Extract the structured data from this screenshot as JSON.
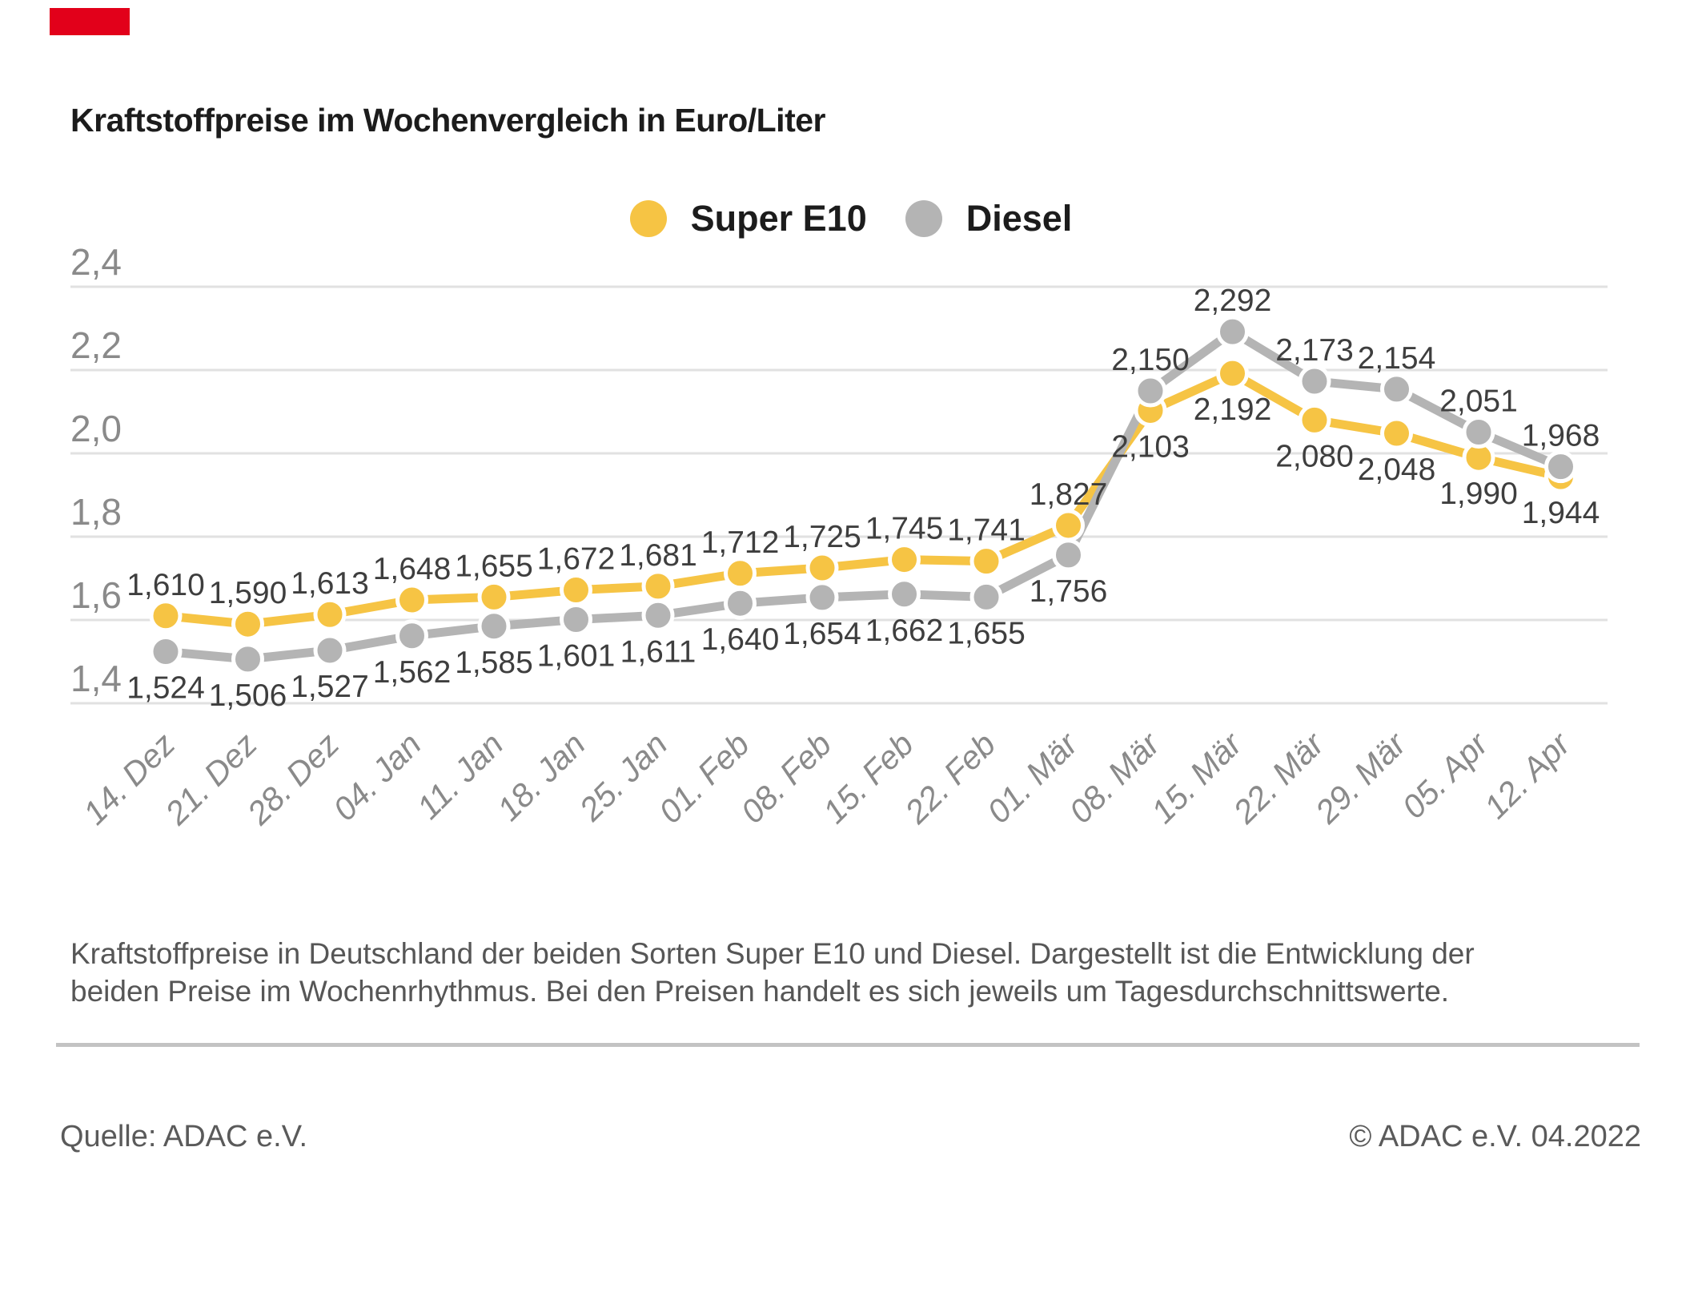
{
  "brand": {
    "color": "#e2001a"
  },
  "header": {
    "title": "Kraftstoffpreise im Wochenvergleich in Euro/Liter"
  },
  "legend": {
    "items": [
      {
        "label": "Super E10",
        "color": "#f6c444"
      },
      {
        "label": "Diesel",
        "color": "#b4b4b4"
      }
    ]
  },
  "chart_data": {
    "type": "line",
    "title": "Kraftstoffpreise im Wochenvergleich in Euro/Liter",
    "xlabel": "",
    "ylabel": "Euro/Liter",
    "ylim": [
      1.4,
      2.4
    ],
    "ytick_values": [
      2.4,
      2.2,
      2.0,
      1.8,
      1.6,
      1.4
    ],
    "ytick_labels": [
      "2,4",
      "2,2",
      "2,0",
      "1,8",
      "1,6",
      "1,4"
    ],
    "grid": true,
    "legend_position": "top-center",
    "x": [
      "14. Dez",
      "21. Dez",
      "28. Dez",
      "04. Jan",
      "11. Jan",
      "18. Jan",
      "25. Jan",
      "01. Feb",
      "08. Feb",
      "15. Feb",
      "22. Feb",
      "01. Mär",
      "08. Mär",
      "15. Mär",
      "22. Mär",
      "29. Mär",
      "05. Apr",
      "12. Apr"
    ],
    "series": [
      {
        "name": "Super E10",
        "color": "#f6c444",
        "values": [
          1.61,
          1.59,
          1.613,
          1.648,
          1.655,
          1.672,
          1.681,
          1.712,
          1.725,
          1.745,
          1.741,
          1.827,
          2.103,
          2.192,
          2.08,
          2.048,
          1.99,
          1.944
        ],
        "labels": [
          "1,610",
          "1,590",
          "1,613",
          "1,648",
          "1,655",
          "1,672",
          "1,681",
          "1,712",
          "1,725",
          "1,745",
          "1,741",
          "1,827",
          "2,103",
          "2,192",
          "2,080",
          "2,048",
          "1,990",
          "1,944"
        ]
      },
      {
        "name": "Diesel",
        "color": "#b4b4b4",
        "values": [
          1.524,
          1.506,
          1.527,
          1.562,
          1.585,
          1.601,
          1.611,
          1.64,
          1.654,
          1.662,
          1.655,
          1.756,
          2.15,
          2.292,
          2.173,
          2.154,
          2.051,
          1.968
        ],
        "labels": [
          "1,524",
          "1,506",
          "1,527",
          "1,562",
          "1,585",
          "1,601",
          "1,611",
          "1,640",
          "1,654",
          "1,662",
          "1,655",
          "1,756",
          "2,150",
          "2,292",
          "2,173",
          "2,154",
          "2,051",
          "1,968"
        ]
      }
    ],
    "colors": {
      "gridline": "#e1e1e1",
      "axis_text": "#8a8a8a",
      "value_label": "#3e3e3e"
    }
  },
  "footer": {
    "description": "Kraftstoffpreise in Deutschland der beiden Sorten Super E10 und Diesel. Dargestellt ist die Entwicklung der beiden Preise im Wochenrhythmus. Bei den Preisen handelt es sich jeweils um Tagesdurchschnittswerte.",
    "source_left": "Quelle: ADAC e.V.",
    "source_right": "© ADAC e.V. 04.2022"
  }
}
